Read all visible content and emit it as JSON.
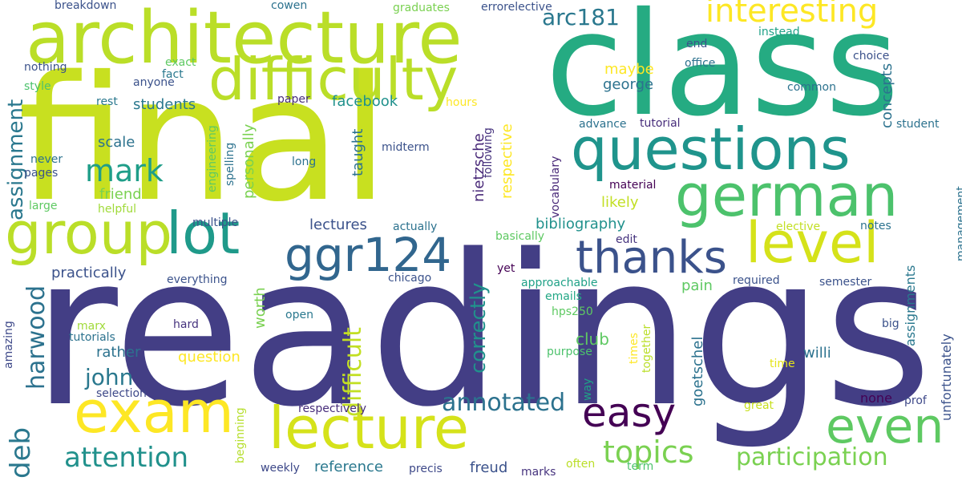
{
  "words": [
    {
      "text": "readings",
      "color": "#433e85"
    },
    {
      "text": "final",
      "color": "#c8e020"
    },
    {
      "text": "class",
      "color": "#25ab82"
    },
    {
      "text": "architecture",
      "color": "#bade28"
    },
    {
      "text": "questions",
      "color": "#1f948c"
    },
    {
      "text": "difficulty",
      "color": "#bade28"
    },
    {
      "text": "german",
      "color": "#4cc26c"
    },
    {
      "text": "lecture",
      "color": "#d5e21a"
    },
    {
      "text": "exam",
      "color": "#fde725"
    },
    {
      "text": "group",
      "color": "#bade28"
    },
    {
      "text": "lot",
      "color": "#1f9a8a"
    },
    {
      "text": "level",
      "color": "#d5e21a"
    },
    {
      "text": "ggr124",
      "color": "#31668e"
    },
    {
      "text": "thanks",
      "color": "#3b528b"
    },
    {
      "text": "even",
      "color": "#5ec962"
    },
    {
      "text": "easy",
      "color": "#440154"
    },
    {
      "text": "interesting",
      "color": "#fde725"
    },
    {
      "text": "mark",
      "color": "#1f9e89"
    },
    {
      "text": "assignment",
      "color": "#2a788e"
    },
    {
      "text": "deb",
      "color": "#2a788e"
    },
    {
      "text": "harwood",
      "color": "#2c728e"
    },
    {
      "text": "attention",
      "color": "#21918c"
    },
    {
      "text": "topics",
      "color": "#7ad151"
    },
    {
      "text": "participation",
      "color": "#7ad151"
    },
    {
      "text": "annotated",
      "color": "#2c728e"
    },
    {
      "text": "john",
      "color": "#2a788e"
    },
    {
      "text": "difficult",
      "color": "#c2df23"
    },
    {
      "text": "correctly",
      "color": "#21918c"
    },
    {
      "text": "arc181",
      "color": "#2a788e"
    },
    {
      "text": "reference",
      "color": "#2a788e"
    },
    {
      "text": "precis",
      "color": "#3e4989"
    },
    {
      "text": "freud",
      "color": "#3b528b"
    },
    {
      "text": "marks",
      "color": "#46337e"
    },
    {
      "text": "often",
      "color": "#bade28"
    },
    {
      "text": "term",
      "color": "#4cc26c"
    },
    {
      "text": "weekly",
      "color": "#3e4989"
    },
    {
      "text": "beginning",
      "color": "#b5de2b"
    },
    {
      "text": "selection",
      "color": "#3e4989"
    },
    {
      "text": "respectively",
      "color": "#472d7b"
    },
    {
      "text": "great",
      "color": "#c8e020"
    },
    {
      "text": "prof",
      "color": "#3e4989"
    },
    {
      "text": "none",
      "color": "#440154"
    },
    {
      "text": "unfortunately",
      "color": "#3b528b"
    },
    {
      "text": "amazing",
      "color": "#3e4989"
    },
    {
      "text": "tutorials",
      "color": "#2c728e"
    },
    {
      "text": "rather",
      "color": "#2c728e"
    },
    {
      "text": "question",
      "color": "#fde725"
    },
    {
      "text": "club",
      "color": "#5ec962"
    },
    {
      "text": "willi",
      "color": "#2c728e"
    },
    {
      "text": "time",
      "color": "#e5e419"
    },
    {
      "text": "big",
      "color": "#3b528b"
    },
    {
      "text": "marx",
      "color": "#a0da39"
    },
    {
      "text": "hard",
      "color": "#46337e"
    },
    {
      "text": "open",
      "color": "#2a788e"
    },
    {
      "text": "worth",
      "color": "#7ad151"
    },
    {
      "text": "goetschel",
      "color": "#2c728e"
    },
    {
      "text": "purpose",
      "color": "#4cc26c"
    },
    {
      "text": "hps250",
      "color": "#5ec962"
    },
    {
      "text": "emails",
      "color": "#22a785"
    },
    {
      "text": "times",
      "color": "#fde725"
    },
    {
      "text": "together",
      "color": "#bade28"
    },
    {
      "text": "way",
      "color": "#1fa187"
    },
    {
      "text": "assignments",
      "color": "#2a788e"
    },
    {
      "text": "practically",
      "color": "#3b528b"
    },
    {
      "text": "everything",
      "color": "#3b528b"
    },
    {
      "text": "chicago",
      "color": "#3b528b"
    },
    {
      "text": "yet",
      "color": "#440154"
    },
    {
      "text": "approachable",
      "color": "#1fa187"
    },
    {
      "text": "pain",
      "color": "#5ec962"
    },
    {
      "text": "required",
      "color": "#3b528b"
    },
    {
      "text": "semester",
      "color": "#3b528b"
    },
    {
      "text": "lectures",
      "color": "#3b528b"
    },
    {
      "text": "actually",
      "color": "#2c728e"
    },
    {
      "text": "basically",
      "color": "#5ec962"
    },
    {
      "text": "edit",
      "color": "#46337e"
    },
    {
      "text": "elective",
      "color": "#c2df23"
    },
    {
      "text": "notes",
      "color": "#2c728e"
    },
    {
      "text": "management",
      "color": "#2c728e"
    },
    {
      "text": "bibliography",
      "color": "#21918c"
    },
    {
      "text": "likely",
      "color": "#c2df23"
    },
    {
      "text": "multiple",
      "color": "#3b528b"
    },
    {
      "text": "material",
      "color": "#440154"
    },
    {
      "text": "vocabulary",
      "color": "#482878"
    },
    {
      "text": "nietzsche",
      "color": "#482878"
    },
    {
      "text": "following",
      "color": "#46337e"
    },
    {
      "text": "respective",
      "color": "#fde725"
    },
    {
      "text": "taught",
      "color": "#2c728e"
    },
    {
      "text": "personally",
      "color": "#7ad151"
    },
    {
      "text": "midterm",
      "color": "#3b528b"
    },
    {
      "text": "long",
      "color": "#2c728e"
    },
    {
      "text": "spelling",
      "color": "#2c728e"
    },
    {
      "text": "engineering",
      "color": "#5ec962"
    },
    {
      "text": "friend",
      "color": "#7ad151"
    },
    {
      "text": "helpful",
      "color": "#a0da39"
    },
    {
      "text": "large",
      "color": "#5ec962"
    },
    {
      "text": "pages",
      "color": "#3b528b"
    },
    {
      "text": "never",
      "color": "#2c728e"
    },
    {
      "text": "scale",
      "color": "#2c728e"
    },
    {
      "text": "students",
      "color": "#2a788e"
    },
    {
      "text": "rest",
      "color": "#2a788e"
    },
    {
      "text": "style",
      "color": "#4cc26c"
    },
    {
      "text": "anyone",
      "color": "#3b528b"
    },
    {
      "text": "fact",
      "color": "#2a788e"
    },
    {
      "text": "exact",
      "color": "#5ec962"
    },
    {
      "text": "nothing",
      "color": "#3b528b"
    },
    {
      "text": "paper",
      "color": "#472d7b"
    },
    {
      "text": "hours",
      "color": "#fde725"
    },
    {
      "text": "facebook",
      "color": "#21918c"
    },
    {
      "text": "george",
      "color": "#2c728e"
    },
    {
      "text": "maybe",
      "color": "#fde725"
    },
    {
      "text": "breakdown",
      "color": "#3b528b"
    },
    {
      "text": "cowen",
      "color": "#2c728e"
    },
    {
      "text": "graduates",
      "color": "#7ad151"
    },
    {
      "text": "errorelective",
      "color": "#3b528b"
    },
    {
      "text": "instead",
      "color": "#1fa187"
    },
    {
      "text": "choice",
      "color": "#3b528b"
    },
    {
      "text": "end",
      "color": "#3b528b"
    },
    {
      "text": "office",
      "color": "#2c728e"
    },
    {
      "text": "concepts",
      "color": "#2c728e"
    },
    {
      "text": "common",
      "color": "#2c728e"
    },
    {
      "text": "student",
      "color": "#2c728e"
    },
    {
      "text": "advance",
      "color": "#2c728e"
    },
    {
      "text": "tutorial",
      "color": "#472d7b"
    }
  ]
}
